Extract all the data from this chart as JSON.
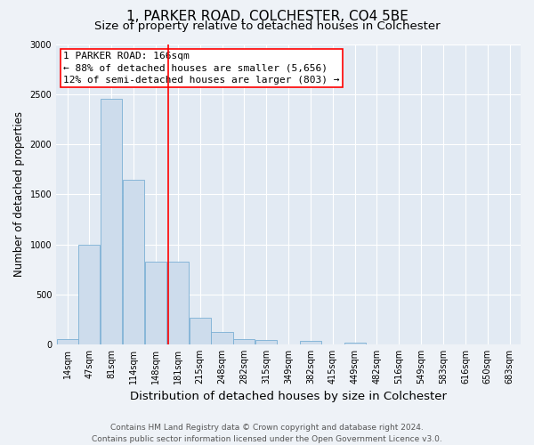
{
  "title_line1": "1, PARKER ROAD, COLCHESTER, CO4 5BE",
  "title_line2": "Size of property relative to detached houses in Colchester",
  "xlabel": "Distribution of detached houses by size in Colchester",
  "ylabel": "Number of detached properties",
  "bin_labels": [
    "14sqm",
    "47sqm",
    "81sqm",
    "114sqm",
    "148sqm",
    "181sqm",
    "215sqm",
    "248sqm",
    "282sqm",
    "315sqm",
    "349sqm",
    "382sqm",
    "415sqm",
    "449sqm",
    "482sqm",
    "516sqm",
    "549sqm",
    "583sqm",
    "616sqm",
    "650sqm",
    "683sqm"
  ],
  "bar_values": [
    55,
    1000,
    2460,
    1650,
    830,
    830,
    270,
    120,
    55,
    40,
    0,
    35,
    0,
    15,
    0,
    0,
    0,
    0,
    0,
    0,
    0
  ],
  "bar_color": "#cddcec",
  "bar_edge_color": "#7aafd4",
  "vline_x_index": 4.55,
  "vline_color": "red",
  "annotation_title": "1 PARKER ROAD: 166sqm",
  "annotation_line2": "← 88% of detached houses are smaller (5,656)",
  "annotation_line3": "12% of semi-detached houses are larger (803) →",
  "annotation_box_color": "red",
  "ylim": [
    0,
    3000
  ],
  "yticks": [
    0,
    500,
    1000,
    1500,
    2000,
    2500,
    3000
  ],
  "background_color": "#eef2f7",
  "plot_bg_color": "#e2eaf3",
  "grid_color": "#ffffff",
  "footer_line1": "Contains HM Land Registry data © Crown copyright and database right 2024.",
  "footer_line2": "Contains public sector information licensed under the Open Government Licence v3.0.",
  "title_fontsize": 11,
  "subtitle_fontsize": 9.5,
  "xlabel_fontsize": 9.5,
  "ylabel_fontsize": 8.5,
  "tick_fontsize": 7,
  "footer_fontsize": 6.5,
  "annotation_fontsize": 8
}
